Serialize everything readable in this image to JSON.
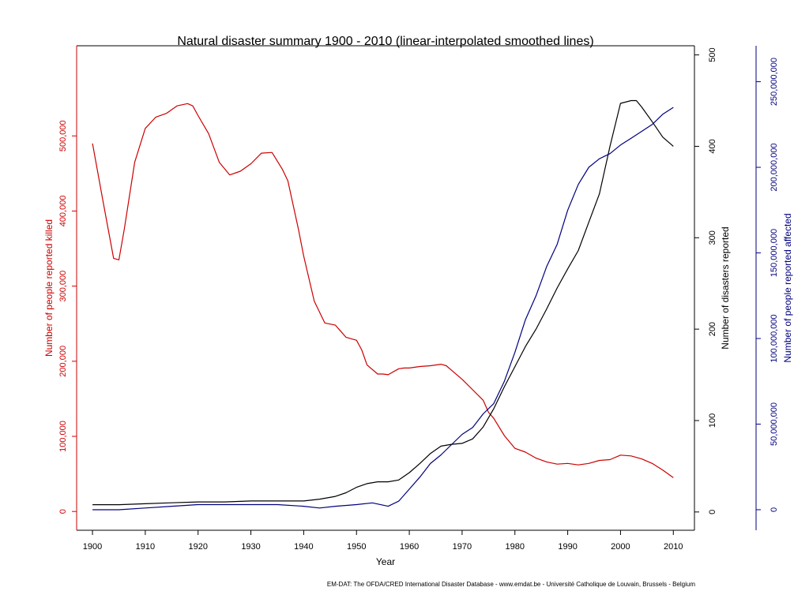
{
  "chart_data": {
    "type": "line",
    "title": "Natural disaster summary 1900 - 2010 (linear-interpolated smoothed lines)",
    "xlabel": "Year",
    "xlim": [
      1897,
      2014
    ],
    "x_ticks": [
      1900,
      1910,
      1920,
      1930,
      1940,
      1950,
      1960,
      1970,
      1980,
      1990,
      2000,
      2010
    ],
    "x_tick_labels": [
      "1900",
      "1910",
      "1920",
      "1930",
      "1940",
      "1950",
      "1960",
      "1970",
      "1980",
      "1990",
      "2000",
      "2010"
    ],
    "axes": {
      "killed": {
        "label": "Number of people reported killed",
        "side": "left",
        "color": "#cc0000",
        "ylim": [
          -25000,
          620000
        ],
        "ticks": [
          0,
          100000,
          200000,
          300000,
          400000,
          500000
        ],
        "tick_labels": [
          "0",
          "100,000",
          "200,000",
          "300,000",
          "400,000",
          "500,000"
        ]
      },
      "disasters": {
        "label": "Number of disasters reported",
        "side": "right",
        "color": "#000000",
        "ylim": [
          -20,
          510
        ],
        "ticks": [
          0,
          100,
          200,
          300,
          400,
          500
        ],
        "tick_labels": [
          "0",
          "100",
          "200",
          "300",
          "400",
          "500"
        ]
      },
      "affected": {
        "label": "Number of people reported affected",
        "side": "far-right",
        "color": "#00007f",
        "ylim": [
          -12000000,
          271000000
        ],
        "ticks": [
          0,
          50000000,
          100000000,
          150000000,
          200000000,
          250000000
        ],
        "tick_labels": [
          "0",
          "50,000,000",
          "100,000,000",
          "150,000,000",
          "200,000,000",
          "250,000,000"
        ]
      }
    },
    "series": [
      {
        "axis": "killed",
        "color": "#cc0000",
        "x": [
          1900,
          1902,
          1904,
          1905,
          1906,
          1908,
          1910,
          1912,
          1914,
          1916,
          1918,
          1919,
          1920,
          1922,
          1924,
          1926,
          1928,
          1930,
          1932,
          1934,
          1936,
          1937,
          1939,
          1940,
          1942,
          1944,
          1946,
          1947,
          1948,
          1950,
          1951,
          1952,
          1954,
          1955,
          1956,
          1958,
          1959,
          1960,
          1962,
          1964,
          1966,
          1967,
          1968,
          1970,
          1972,
          1974,
          1975,
          1976,
          1978,
          1980,
          1982,
          1984,
          1986,
          1988,
          1990,
          1992,
          1994,
          1996,
          1998,
          2000,
          2002,
          2004,
          2006,
          2008,
          2010
        ],
        "values": [
          490000,
          413000,
          337000,
          335000,
          375000,
          465000,
          510000,
          525000,
          530000,
          540000,
          543000,
          540000,
          527000,
          503000,
          465000,
          448000,
          453000,
          463000,
          477000,
          478000,
          455000,
          440000,
          376000,
          340000,
          280000,
          251000,
          248000,
          240000,
          232000,
          228000,
          215000,
          195000,
          183000,
          183000,
          182000,
          190000,
          191000,
          191000,
          193000,
          194000,
          196000,
          194000,
          188000,
          176000,
          162000,
          148000,
          132000,
          124000,
          101000,
          84000,
          79000,
          71000,
          66000,
          63000,
          64000,
          62000,
          64000,
          68000,
          69000,
          75000,
          74000,
          70000,
          64000,
          55000,
          45000
        ]
      },
      {
        "axis": "disasters",
        "color": "#000000",
        "x": [
          1900,
          1905,
          1910,
          1915,
          1920,
          1925,
          1930,
          1935,
          1940,
          1943,
          1946,
          1948,
          1950,
          1952,
          1954,
          1956,
          1958,
          1960,
          1962,
          1964,
          1966,
          1968,
          1970,
          1972,
          1974,
          1976,
          1978,
          1980,
          1982,
          1984,
          1986,
          1988,
          1990,
          1992,
          1994,
          1996,
          1998,
          2000,
          2002,
          2003,
          2004,
          2006,
          2008,
          2010
        ],
        "values": [
          8,
          8,
          9,
          10,
          11,
          11,
          12,
          12,
          12,
          14,
          17,
          21,
          27,
          31,
          33,
          33,
          35,
          43,
          53,
          64,
          72,
          74,
          75,
          80,
          93,
          113,
          137,
          159,
          181,
          200,
          222,
          245,
          266,
          286,
          317,
          348,
          400,
          447,
          450,
          450,
          443,
          427,
          410,
          400
        ]
      },
      {
        "axis": "affected",
        "color": "#00007f",
        "x": [
          1900,
          1905,
          1910,
          1915,
          1920,
          1925,
          1930,
          1935,
          1940,
          1943,
          1946,
          1950,
          1953,
          1956,
          1958,
          1960,
          1962,
          1964,
          1966,
          1968,
          1970,
          1972,
          1974,
          1976,
          1978,
          1980,
          1982,
          1984,
          1986,
          1988,
          1990,
          1992,
          1994,
          1996,
          1998,
          2000,
          2002,
          2004,
          2006,
          2008,
          2010
        ],
        "values": [
          0,
          0,
          1000000,
          2000000,
          3000000,
          3000000,
          3000000,
          3000000,
          2000000,
          1000000,
          2000000,
          3000000,
          4000000,
          2000000,
          5000000,
          12000000,
          19000000,
          27000000,
          32000000,
          38000000,
          44000000,
          48000000,
          56000000,
          62000000,
          75000000,
          92000000,
          111000000,
          125000000,
          142000000,
          155000000,
          175000000,
          190000000,
          200000000,
          205000000,
          208000000,
          213000000,
          217000000,
          221000000,
          225000000,
          231000000,
          235000000
        ]
      }
    ],
    "footnote": "EM-DAT: The OFDA/CRED International Disaster Database - www.emdat.be - Université Catholique de Louvain, Brussels - Belgium"
  }
}
